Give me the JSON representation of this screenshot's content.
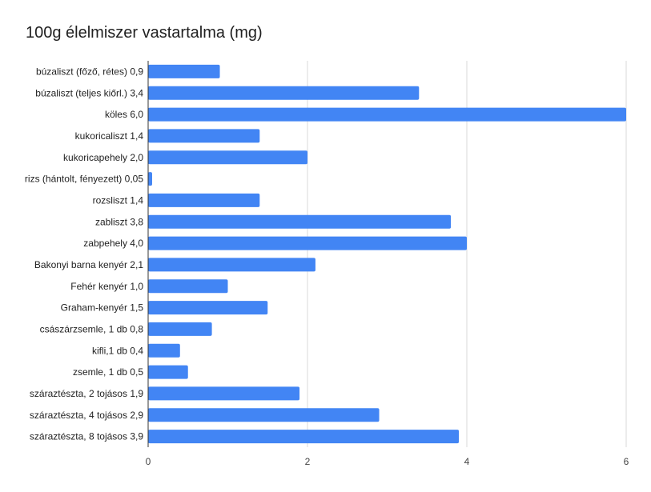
{
  "chart_data": {
    "type": "bar",
    "orientation": "horizontal",
    "title": "100g élelmiszer vastartalma (mg)",
    "categories": [
      "búzaliszt (főző, rétes) 0,9",
      "búzaliszt (teljes kiőrl.) 3,4",
      "köles 6,0",
      "kukoricaliszt 1,4",
      "kukoricapehely 2,0",
      "rizs (hántolt, fényezett) 0,05",
      "rozsliszt 1,4",
      "zabliszt 3,8",
      "zabpehely 4,0",
      "Bakonyi barna kenyér 2,1",
      "Fehér kenyér 1,0",
      "Graham-kenyér 1,5",
      "császárzsemle, 1 db 0,8",
      "kifli,1 db 0,4",
      "zsemle, 1 db 0,5",
      "száraztészta, 2 tojásos 1,9",
      "száraztészta, 4 tojásos 2,9",
      "száraztészta, 8 tojásos 3,9"
    ],
    "values": [
      0.9,
      3.4,
      6.0,
      1.4,
      2.0,
      0.05,
      1.4,
      3.8,
      4.0,
      2.1,
      1.0,
      1.5,
      0.8,
      0.4,
      0.5,
      1.9,
      2.9,
      3.9
    ],
    "xlim": [
      0,
      6
    ],
    "xticks": [
      "0",
      "2",
      "4",
      "6"
    ],
    "xtick_values": [
      0,
      2,
      4,
      6
    ],
    "grid": true,
    "legend": "none",
    "bar_color": "#4285f4"
  }
}
